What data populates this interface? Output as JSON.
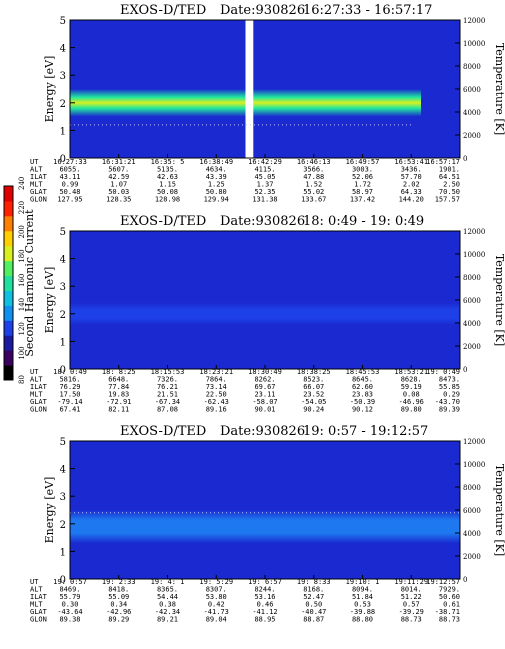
{
  "colorbar": {
    "label": "Second Harmonic Current",
    "ticks": [
      240,
      220,
      200,
      180,
      160,
      140,
      120,
      100,
      80
    ],
    "colors": [
      "#000000",
      "#3a0060",
      "#1a1aa0",
      "#1e40e8",
      "#1090f0",
      "#10c0e0",
      "#20e0a0",
      "#50f060",
      "#d8f020",
      "#ffd000",
      "#ff8000",
      "#ff2000",
      "#e00000"
    ]
  },
  "chart_data": [
    {
      "type": "heatmap",
      "title": "EXOS-D/TED",
      "date_label": "Date:930826",
      "time_range": "16:27:33 - 16:57:17",
      "ylabel": "Energy [eV]",
      "ylabel_right": "Temperature [K]",
      "ylim": [
        0,
        5
      ],
      "yticks": [
        0,
        1,
        2,
        3,
        4,
        5
      ],
      "ylim_right": [
        0,
        12000
      ],
      "yticks_right": [
        0,
        2000,
        4000,
        6000,
        8000,
        10000,
        12000
      ],
      "band_center_ev": 2.0,
      "band_width_ev": 0.5,
      "band_color": "#20e8a0",
      "band_core_color": "#d8f020",
      "background_color": "#1a2ad0",
      "data_gap": [
        0.45,
        0.47
      ],
      "temperature_trace_ev": 1.2,
      "ephemeris": {
        "labels": [
          "UT",
          "ALT",
          "ILAT",
          "MLT",
          "GLAT",
          "GLON"
        ],
        "columns": [
          [
            "16:27:33",
            "6055.",
            "43.11",
            "0.99",
            "50.48",
            "127.95"
          ],
          [
            "16:31:21",
            "5607.",
            "42.59",
            "1.07",
            "50.03",
            "128.35"
          ],
          [
            "16:35: 5",
            "5135.",
            "42.63",
            "1.15",
            "50.08",
            "128.98"
          ],
          [
            "16:38:49",
            "4634.",
            "43.39",
            "1.25",
            "50.80",
            "129.94"
          ],
          [
            "16:42:29",
            "4115.",
            "45.05",
            "1.37",
            "52.35",
            "131.38"
          ],
          [
            "16:46:13",
            "3566.",
            "47.88",
            "1.52",
            "55.02",
            "133.67"
          ],
          [
            "16:49:57",
            "3003.",
            "52.06",
            "1.72",
            "58.97",
            "137.42"
          ],
          [
            "16:53:41",
            "3436.",
            "57.70",
            "2.02",
            "64.33",
            "144.20"
          ],
          [
            "16:57:17",
            "1901.",
            "64.51",
            "2.50",
            "70.50",
            "157.57"
          ]
        ]
      }
    },
    {
      "type": "heatmap",
      "title": "EXOS-D/TED",
      "date_label": "Date:930826",
      "time_range": "18: 0:49 - 19: 0:49",
      "ylabel": "Energy [eV]",
      "ylabel_right": "Temperature [K]",
      "ylim": [
        0,
        5
      ],
      "yticks": [
        0,
        1,
        2,
        3,
        4,
        5
      ],
      "ylim_right": [
        0,
        12000
      ],
      "yticks_right": [
        0,
        2000,
        4000,
        6000,
        8000,
        10000,
        12000
      ],
      "band_center_ev": 2.0,
      "band_width_ev": 0.4,
      "band_color": "#1e40e8",
      "band_core_color": "#1e40e8",
      "background_color": "#1a2ad0",
      "data_gap": null,
      "temperature_trace_ev": null,
      "ephemeris": {
        "labels": [
          "UT",
          "ALT",
          "ILAT",
          "MLT",
          "GLAT",
          "GLON"
        ],
        "columns": [
          [
            "18: 0:49",
            "5816.",
            "76.29",
            "17.50",
            "-79.14",
            "67.41"
          ],
          [
            "18: 8:25",
            "6648.",
            "77.84",
            "19.83",
            "-72.91",
            "82.11"
          ],
          [
            "18:15:53",
            "7326.",
            "76.21",
            "21.51",
            "-67.34",
            "87.08"
          ],
          [
            "18:23:21",
            "7864.",
            "73.14",
            "22.50",
            "-62.43",
            "89.16"
          ],
          [
            "18:30:49",
            "8262.",
            "69.67",
            "23.11",
            "-58.07",
            "90.01"
          ],
          [
            "18:38:25",
            "8523.",
            "66.07",
            "23.52",
            "-54.05",
            "90.24"
          ],
          [
            "18:45:53",
            "8645.",
            "62.60",
            "23.83",
            "-50.39",
            "90.12"
          ],
          [
            "18:53:21",
            "8628.",
            "59.19",
            "0.08",
            "-46.96",
            "89.80"
          ],
          [
            "19: 0:49",
            "8473.",
            "55.85",
            "0.29",
            "-43.70",
            "89.39"
          ]
        ]
      }
    },
    {
      "type": "heatmap",
      "title": "EXOS-D/TED",
      "date_label": "Date:930826",
      "time_range": "19: 0:57 - 19:12:57",
      "ylabel": "Energy [eV]",
      "ylabel_right": "Temperature [K]",
      "ylim": [
        0,
        5
      ],
      "yticks": [
        0,
        1,
        2,
        3,
        4,
        5
      ],
      "ylim_right": [
        0,
        12000
      ],
      "yticks_right": [
        0,
        2000,
        4000,
        6000,
        8000,
        10000,
        12000
      ],
      "band_center_ev": 1.9,
      "band_width_ev": 0.6,
      "band_color": "#1e78f0",
      "band_core_color": "#1e78f0",
      "background_color": "#1a2ad0",
      "data_gap": null,
      "temperature_trace_ev": 2.4,
      "ephemeris": {
        "labels": [
          "UT",
          "ALT",
          "ILAT",
          "MLT",
          "GLAT",
          "GLON"
        ],
        "columns": [
          [
            "19: 0:57",
            "8469.",
            "55.79",
            "0.30",
            "-43.64",
            "89.38"
          ],
          [
            "19: 2:33",
            "8418.",
            "55.09",
            "0.34",
            "-42.96",
            "89.29"
          ],
          [
            "19: 4: 1",
            "8365.",
            "54.44",
            "0.38",
            "-42.34",
            "89.21"
          ],
          [
            "19: 5:29",
            "8307.",
            "53.80",
            "0.42",
            "-41.73",
            "89.04"
          ],
          [
            "19: 6:57",
            "8244.",
            "53.16",
            "0.46",
            "-41.12",
            "88.95"
          ],
          [
            "19: 8:33",
            "8168.",
            "52.47",
            "0.50",
            "-40.47",
            "88.87"
          ],
          [
            "19:10: 1",
            "8094.",
            "51.84",
            "0.53",
            "-39.88",
            "88.80"
          ],
          [
            "19:11:29",
            "8014.",
            "51.22",
            "0.57",
            "-39.29",
            "88.73"
          ],
          [
            "19:12:57",
            "7929.",
            "50.60",
            "0.61",
            "-38.71",
            "88.73"
          ]
        ]
      }
    }
  ]
}
